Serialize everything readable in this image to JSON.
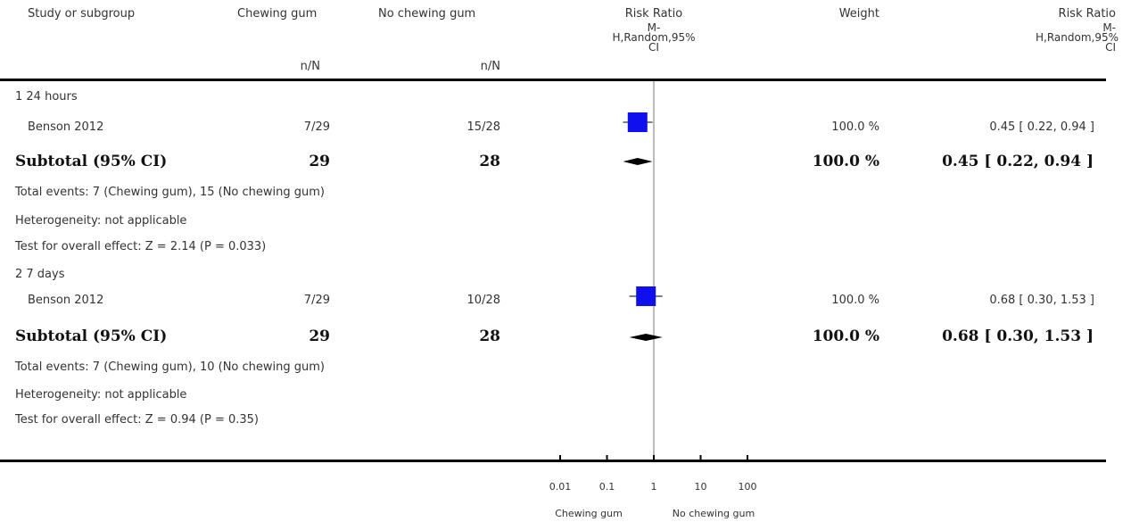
{
  "header": {
    "study": "Study or subgroup",
    "group1": "Chewing gum",
    "group2": "No chewing gum",
    "nN1": "n/N",
    "nN2": "n/N",
    "rr_title": "Risk Ratio",
    "rr_line1": "M-",
    "rr_line2": "H,Random,95%",
    "rr_line3": "CI",
    "weight": "Weight",
    "rr2_title": "Risk Ratio",
    "rr2_line1": "M-",
    "rr2_line2": "H,Random,95%",
    "rr2_line3": "CI"
  },
  "subgroups": [
    {
      "label": "1 24 hours",
      "study": {
        "name": "Benson 2012",
        "events1": "7/29",
        "events2": "15/28",
        "weight": "100.0 %",
        "ci": "0.45 [ 0.22, 0.94 ]"
      },
      "subtotal": {
        "label": "Subtotal (95% CI)",
        "n1": "29",
        "n2": "28",
        "weight": "100.0 %",
        "ci": "0.45 [ 0.22, 0.94 ]"
      },
      "total_events": "Total events: 7 (Chewing gum), 15 (No chewing gum)",
      "heterogeneity": "Heterogeneity: not applicable",
      "overall": "Test for overall effect: Z = 2.14 (P = 0.033)"
    },
    {
      "label": "2 7 days",
      "study": {
        "name": "Benson 2012",
        "events1": "7/29",
        "events2": "10/28",
        "weight": "100.0 %",
        "ci": "0.68 [ 0.30, 1.53 ]"
      },
      "subtotal": {
        "label": "Subtotal (95% CI)",
        "n1": "29",
        "n2": "28",
        "weight": "100.0 %",
        "ci": "0.68 [ 0.30, 1.53 ]"
      },
      "total_events": "Total events: 7 (Chewing gum), 10 (No chewing gum)",
      "heterogeneity": "Heterogeneity: not applicable",
      "overall": "Test for overall effect: Z = 0.94 (P = 0.35)"
    }
  ],
  "axis": {
    "ticks": [
      "0.01",
      "0.1",
      "1",
      "10",
      "100"
    ],
    "favours_left": "Chewing gum",
    "favours_right": "No chewing gum"
  },
  "chart_data": {
    "type": "forest",
    "scale": "log",
    "xlim": [
      0.01,
      100
    ],
    "null_line": 1,
    "ticks": [
      0.01,
      0.1,
      1,
      10,
      100
    ],
    "studies": [
      {
        "subgroup": "1 24 hours",
        "name": "Benson 2012",
        "rr": 0.45,
        "lo": 0.22,
        "hi": 0.94,
        "weight": 100.0
      },
      {
        "subgroup": "2 7 days",
        "name": "Benson 2012",
        "rr": 0.68,
        "lo": 0.3,
        "hi": 1.53,
        "weight": 100.0
      }
    ],
    "subtotals": [
      {
        "subgroup": "1 24 hours",
        "rr": 0.45,
        "lo": 0.22,
        "hi": 0.94
      },
      {
        "subgroup": "2 7 days",
        "rr": 0.68,
        "lo": 0.3,
        "hi": 1.53
      }
    ],
    "colors": {
      "box": "#1010ee",
      "line": "#000000",
      "diamond": "#000000"
    }
  }
}
